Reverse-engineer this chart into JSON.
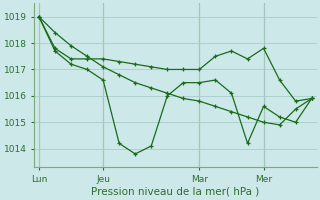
{
  "xlabel": "Pression niveau de la mer( hPa )",
  "bg_color": "#cce8e8",
  "grid_color": "#aacccc",
  "line_color": "#1a6b1a",
  "ylim": [
    1013.3,
    1019.5
  ],
  "yticks": [
    1014,
    1015,
    1016,
    1017,
    1018,
    1019
  ],
  "xtick_labels": [
    "Lun",
    "Jeu",
    "Mar",
    "Mer"
  ],
  "xtick_positions": [
    0,
    4,
    10,
    14
  ],
  "total_points": 18,
  "line1_x": [
    0,
    1,
    2,
    3,
    4,
    5,
    6,
    7,
    8,
    9,
    10,
    11,
    12,
    13,
    14,
    15,
    16,
    17
  ],
  "line1_y": [
    1019.0,
    1017.8,
    1017.4,
    1017.4,
    1017.4,
    1017.3,
    1017.2,
    1017.1,
    1017.0,
    1017.0,
    1017.0,
    1017.5,
    1017.7,
    1017.4,
    1017.8,
    1016.6,
    1015.8,
    1015.9
  ],
  "line2_x": [
    0,
    1,
    2,
    3,
    4,
    5,
    6,
    7,
    8,
    9,
    10,
    11,
    12,
    13,
    14,
    15,
    16,
    17
  ],
  "line2_y": [
    1019.0,
    1017.7,
    1017.2,
    1017.0,
    1016.6,
    1014.2,
    1013.8,
    1014.1,
    1016.0,
    1016.5,
    1016.5,
    1016.6,
    1016.1,
    1014.2,
    1015.6,
    1015.2,
    1015.0,
    1015.9
  ],
  "line3_x": [
    0,
    1,
    2,
    3,
    4,
    5,
    6,
    7,
    8,
    9,
    10,
    11,
    12,
    13,
    14,
    15,
    16,
    17
  ],
  "line3_y": [
    1019.0,
    1018.4,
    1017.9,
    1017.5,
    1017.1,
    1016.8,
    1016.5,
    1016.3,
    1016.1,
    1015.9,
    1015.8,
    1015.6,
    1015.4,
    1015.2,
    1015.0,
    1014.9,
    1015.5,
    1015.9
  ]
}
